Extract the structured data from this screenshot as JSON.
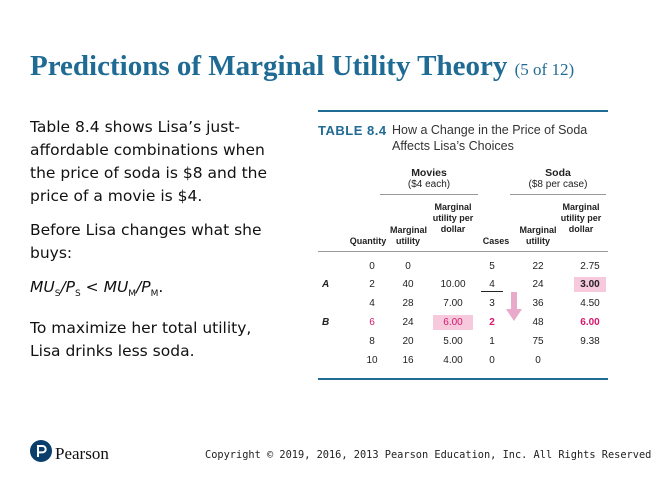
{
  "title": {
    "main": "Predictions of Marginal Utility Theory",
    "suffix": "(5 of 12)"
  },
  "body": {
    "para1": "Table 8.4 shows Lisa’s just-affordable combinations when the price of soda is $8 and the price of a movie is $4.",
    "para2": "Before Lisa changes what she buys:",
    "formula": {
      "mu_s": "MU",
      "s_sub": "S",
      "p_s": "/P",
      "ps_sub": "S",
      "lt": " < ",
      "mu_m": "MU",
      "m_sub": "M",
      "p_m": "/P",
      "pm_sub": "M",
      "end": "."
    },
    "para3": "To maximize her total utility, Lisa drinks less soda."
  },
  "table": {
    "label": "TABLE 8.4",
    "caption": "How a Change in the Price of Soda Affects Lisa’s Choices",
    "movies_group": {
      "title": "Movies",
      "sub": "($4 each)"
    },
    "soda_group": {
      "title": "Soda",
      "sub": "($8 per case)"
    },
    "headers": {
      "quantity": "Quantity",
      "mu_movies": "Marginal utility",
      "mupd_movies": "Marginal utility per dollar",
      "cases": "Cases",
      "mu_soda": "Marginal utility",
      "mupd_soda": "Marginal utility per dollar"
    },
    "rows": [
      {
        "label": "",
        "q": "0",
        "mu": "0",
        "mupd": "",
        "c": "5",
        "smu": "22",
        "smupd": "2.75"
      },
      {
        "label": "A",
        "q": "2",
        "mu": "40",
        "mupd": "10.00",
        "c": "4",
        "smu": "24",
        "smupd": "3.00"
      },
      {
        "label": "",
        "q": "4",
        "mu": "28",
        "mupd": "7.00",
        "c": "3",
        "smu": "36",
        "smupd": "4.50"
      },
      {
        "label": "B",
        "q": "6",
        "mu": "24",
        "mupd": "6.00",
        "c": "2",
        "smu": "48",
        "smupd": "6.00"
      },
      {
        "label": "",
        "q": "8",
        "mu": "20",
        "mupd": "5.00",
        "c": "1",
        "smu": "75",
        "smupd": "9.38"
      },
      {
        "label": "",
        "q": "10",
        "mu": "16",
        "mupd": "4.00",
        "c": "0",
        "smu": "0",
        "smupd": ""
      }
    ]
  },
  "footer": {
    "logo_text": "Pearson",
    "copyright": "Copyright © 2019, 2016, 2013 Pearson Education, Inc. All Rights Reserved"
  },
  "colors": {
    "title": "#1f6b94",
    "accent_pink": "#d6176f",
    "highlight": "#f6c9dc"
  }
}
